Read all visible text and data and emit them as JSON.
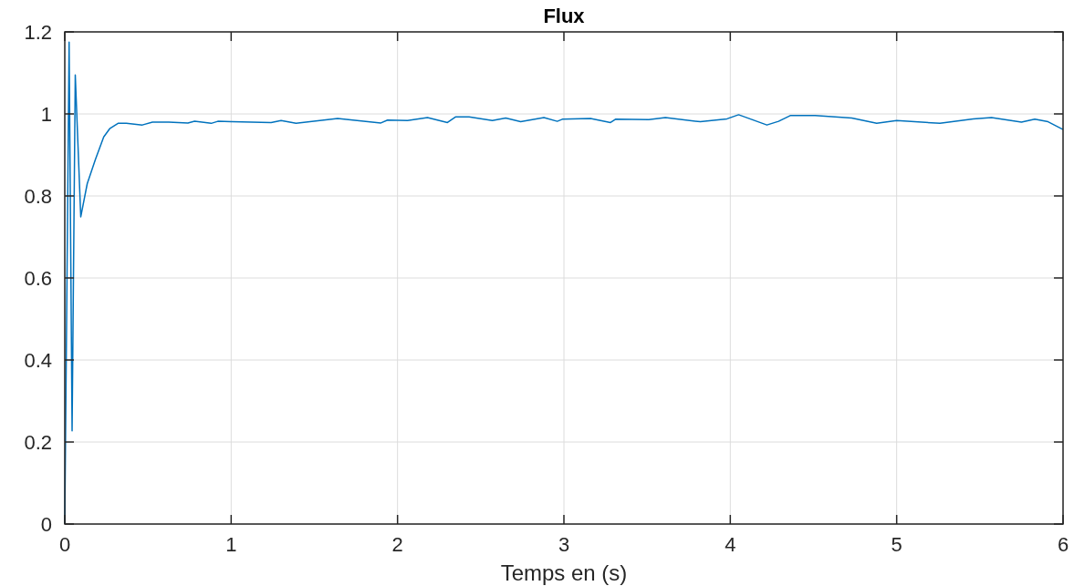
{
  "chart_data": {
    "type": "line",
    "title": "Flux",
    "xlabel": "Temps en (s)",
    "xlim": [
      0,
      6
    ],
    "xticks": [
      0,
      1,
      2,
      3,
      4,
      5,
      6
    ],
    "ylim": [
      0,
      1.2
    ],
    "yticks": [
      0,
      0.2,
      0.4,
      0.6,
      0.8,
      1,
      1.2
    ],
    "grid": true,
    "line_style": "solid",
    "series": [
      {
        "color": "#0072bd",
        "x": [
          0,
          0.026,
          0.044,
          0.063,
          0.096,
          0.135,
          0.184,
          0.234,
          0.27,
          0.32,
          0.37,
          0.466,
          0.527,
          0.625,
          0.74,
          0.78,
          0.88,
          0.92,
          1.0,
          1.24,
          1.3,
          1.39,
          1.64,
          1.9,
          1.94,
          2.06,
          2.18,
          2.3,
          2.35,
          2.43,
          2.57,
          2.65,
          2.74,
          2.88,
          2.96,
          2.99,
          3.16,
          3.28,
          3.31,
          3.51,
          3.61,
          3.82,
          3.98,
          4.05,
          4.22,
          4.29,
          4.36,
          4.51,
          4.73,
          4.88,
          5.0,
          5.26,
          5.46,
          5.57,
          5.75,
          5.83,
          5.91,
          6.0
        ],
        "values": [
          0,
          1.175,
          0.227,
          1.095,
          0.749,
          0.83,
          0.889,
          0.944,
          0.964,
          0.977,
          0.977,
          0.973,
          0.98,
          0.98,
          0.978,
          0.982,
          0.977,
          0.982,
          0.981,
          0.979,
          0.984,
          0.977,
          0.989,
          0.978,
          0.985,
          0.984,
          0.991,
          0.979,
          0.993,
          0.993,
          0.984,
          0.99,
          0.981,
          0.991,
          0.982,
          0.987,
          0.989,
          0.979,
          0.987,
          0.986,
          0.991,
          0.981,
          0.988,
          0.998,
          0.973,
          0.982,
          0.996,
          0.996,
          0.99,
          0.977,
          0.984,
          0.977,
          0.988,
          0.991,
          0.98,
          0.987,
          0.981,
          0.962
        ]
      }
    ]
  }
}
